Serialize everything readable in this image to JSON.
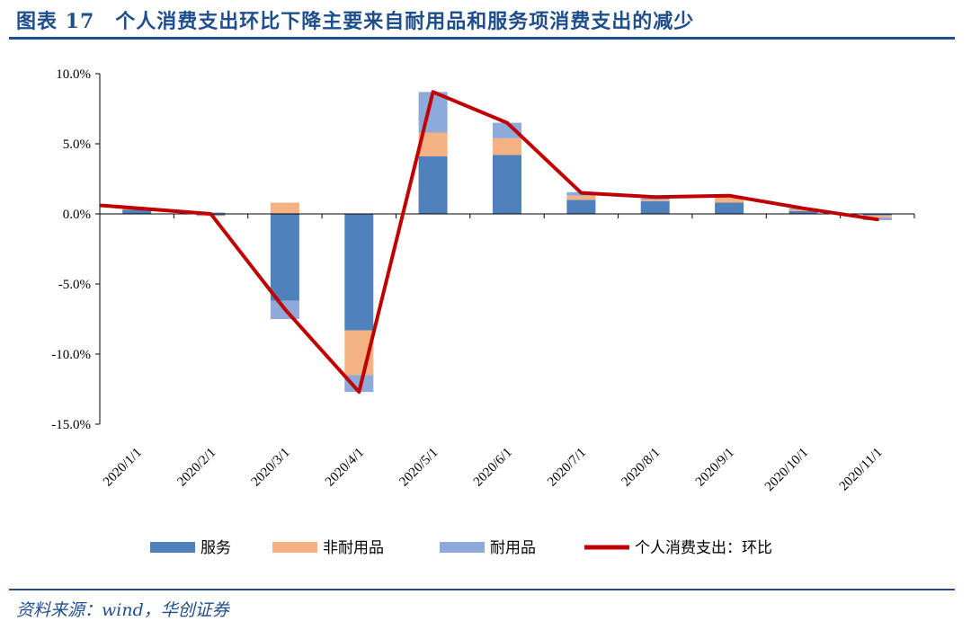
{
  "header": {
    "title": "图表 17　个人消费支出环比下降主要来自耐用品和服务项消费支出的减少"
  },
  "footer": {
    "source": "资料来源：wind，华创证券"
  },
  "colors": {
    "brand": "#1f4e8c",
    "services": "#4f81bd",
    "nondurables": "#f4b183",
    "durables": "#8eaadb",
    "total_line": "#c00000"
  },
  "chart_data": {
    "type": "bar",
    "stacked": true,
    "categories": [
      "2020/1/1",
      "2020/2/1",
      "2020/3/1",
      "2020/4/1",
      "2020/5/1",
      "2020/6/1",
      "2020/7/1",
      "2020/8/1",
      "2020/9/1",
      "2020/10/1",
      "2020/11/1"
    ],
    "y_ticks": [
      "10.0%",
      "5.0%",
      "0.0%",
      "-5.0%",
      "-10.0%",
      "-15.0%"
    ],
    "ylim": [
      -15,
      10
    ],
    "y_unit": "%",
    "series": [
      {
        "name": "服务",
        "kind": "bar",
        "color": "#4f81bd",
        "values": [
          0.3,
          -0.1,
          -6.2,
          -8.3,
          4.1,
          4.2,
          1.0,
          0.9,
          0.8,
          0.2,
          -0.1
        ]
      },
      {
        "name": "非耐用品",
        "kind": "bar",
        "color": "#f4b183",
        "values": [
          0.1,
          -0.05,
          0.8,
          -3.2,
          1.7,
          1.2,
          0.3,
          0.1,
          0.4,
          0.1,
          -0.15
        ]
      },
      {
        "name": "耐用品",
        "kind": "bar",
        "color": "#8eaadb",
        "values": [
          0.05,
          0.1,
          -1.3,
          -1.2,
          2.9,
          1.1,
          0.25,
          0.1,
          0.05,
          0.1,
          -0.2
        ]
      },
      {
        "name": "个人消费支出：环比",
        "kind": "line",
        "color": "#c00000",
        "values": [
          0.6,
          0.0,
          -6.8,
          -12.7,
          8.7,
          6.5,
          1.5,
          1.2,
          1.3,
          0.4,
          -0.4
        ]
      }
    ],
    "grid": false,
    "legend_position": "bottom"
  }
}
